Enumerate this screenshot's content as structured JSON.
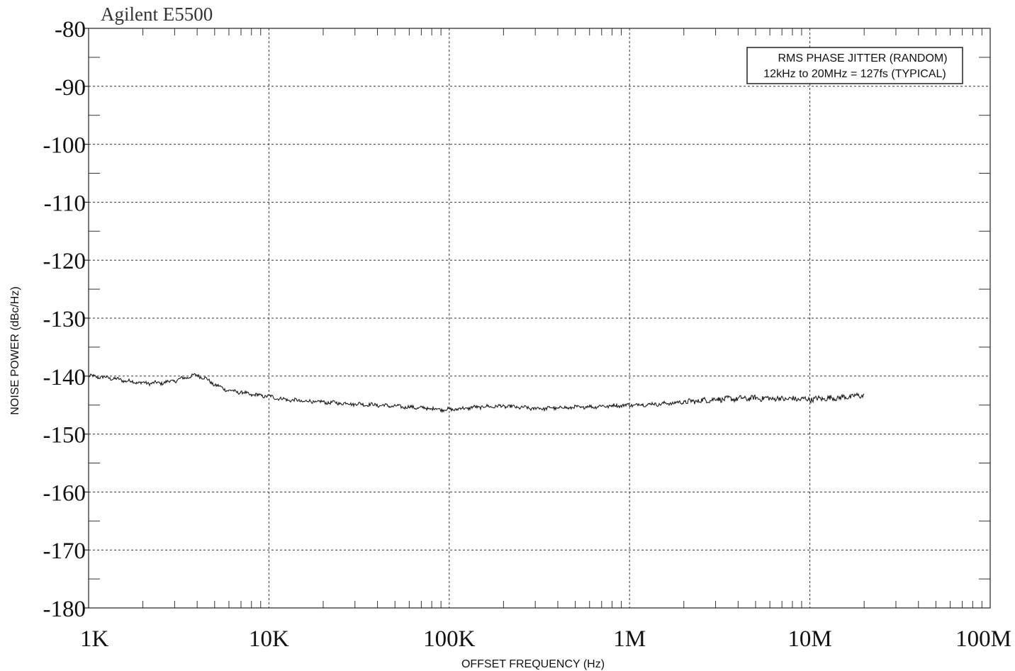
{
  "chart_data": {
    "type": "line",
    "title": "Agilent E5500",
    "xlabel": "OFFSET FREQUENCY (Hz)",
    "ylabel": "NOISE POWER (dBc/Hz)",
    "x_scale": "log",
    "xlim": [
      1000,
      100000000
    ],
    "ylim": [
      -180,
      -80
    ],
    "grid": true,
    "x_ticks": [
      {
        "value": 1000,
        "label": "1K"
      },
      {
        "value": 10000,
        "label": "10K"
      },
      {
        "value": 100000,
        "label": "100K"
      },
      {
        "value": 1000000,
        "label": "1M"
      },
      {
        "value": 10000000,
        "label": "10M"
      },
      {
        "value": 100000000,
        "label": "100M"
      }
    ],
    "y_ticks": [
      {
        "value": -80,
        "label": "-80"
      },
      {
        "value": -90,
        "label": "-90"
      },
      {
        "value": -100,
        "label": "-100"
      },
      {
        "value": -110,
        "label": "-110"
      },
      {
        "value": -120,
        "label": "-120"
      },
      {
        "value": -130,
        "label": "-130"
      },
      {
        "value": -140,
        "label": "-140"
      },
      {
        "value": -150,
        "label": "-150"
      },
      {
        "value": -160,
        "label": "-160"
      },
      {
        "value": -170,
        "label": "-170"
      },
      {
        "value": -180,
        "label": "-180"
      }
    ],
    "annotation": {
      "position": "top-right",
      "lines": [
        "RMS PHASE JITTER (RANDOM)",
        "12kHz to 20MHz = 127fs (TYPICAL)"
      ]
    },
    "series": [
      {
        "color": "#1a1a1a",
        "x": [
          1000,
          1300,
          1600,
          2000,
          2500,
          3000,
          3500,
          4000,
          4500,
          5000,
          6000,
          7000,
          8000,
          10000,
          12000,
          15000,
          20000,
          30000,
          40000,
          50000,
          70000,
          100000,
          150000,
          200000,
          300000,
          500000,
          700000,
          1000000,
          1500000,
          2000000,
          3000000,
          5000000,
          7000000,
          10000000,
          15000000,
          20000000
        ],
        "y": [
          -140,
          -140.3,
          -140.8,
          -141.2,
          -141.2,
          -140.8,
          -140.2,
          -139.8,
          -140.5,
          -141.5,
          -142.5,
          -142.8,
          -143.2,
          -143.5,
          -144,
          -144.3,
          -144.5,
          -144.8,
          -145,
          -145.2,
          -145.5,
          -145.8,
          -145.3,
          -145.2,
          -145.6,
          -145.4,
          -145.2,
          -145,
          -144.8,
          -144.5,
          -144,
          -143.8,
          -143.9,
          -144,
          -143.7,
          -143.3
        ]
      }
    ]
  }
}
